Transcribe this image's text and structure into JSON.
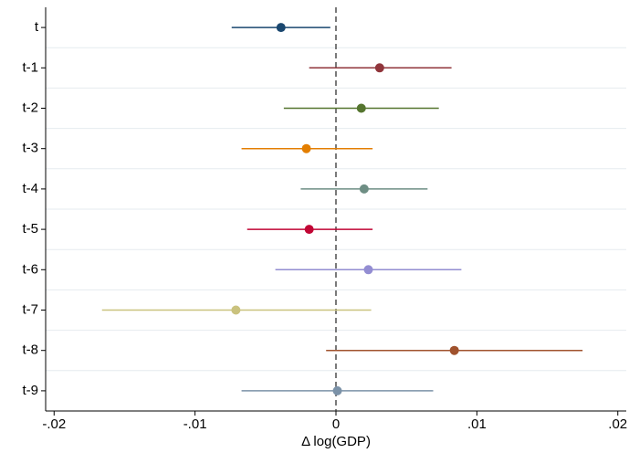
{
  "chart_data": {
    "type": "coefplot",
    "x_label": "Δ log(GDP)",
    "categories": [
      "t",
      "t-1",
      "t-2",
      "t-3",
      "t-4",
      "t-5",
      "t-6",
      "t-7",
      "t-8",
      "t-9"
    ],
    "values": [
      -0.0039,
      0.0031,
      0.0018,
      -0.0021,
      0.002,
      -0.0019,
      0.0023,
      -0.0071,
      0.0084,
      0.0001
    ],
    "lower": [
      -0.0074,
      -0.0019,
      -0.0037,
      -0.0067,
      -0.0025,
      -0.0063,
      -0.0043,
      -0.0166,
      -0.0007,
      -0.0067
    ],
    "upper": [
      -0.0004,
      0.0082,
      0.0073,
      0.0026,
      0.0065,
      0.0026,
      0.0089,
      0.0025,
      0.0175,
      0.0069
    ],
    "colors": [
      "#1a476f",
      "#90353b",
      "#55752f",
      "#e37e00",
      "#6e8e84",
      "#c10534",
      "#938dd2",
      "#cac27e",
      "#a0522d",
      "#7b92a8"
    ],
    "xlim": [
      -0.0206,
      0.0206
    ],
    "xticks": [
      {
        "value": -0.02,
        "label": "-.02"
      },
      {
        "value": -0.01,
        "label": "-.01"
      },
      0,
      {
        "value": 0.01,
        "label": ".01"
      },
      {
        "value": 0.02,
        "label": ".02"
      }
    ],
    "xline": 0
  }
}
